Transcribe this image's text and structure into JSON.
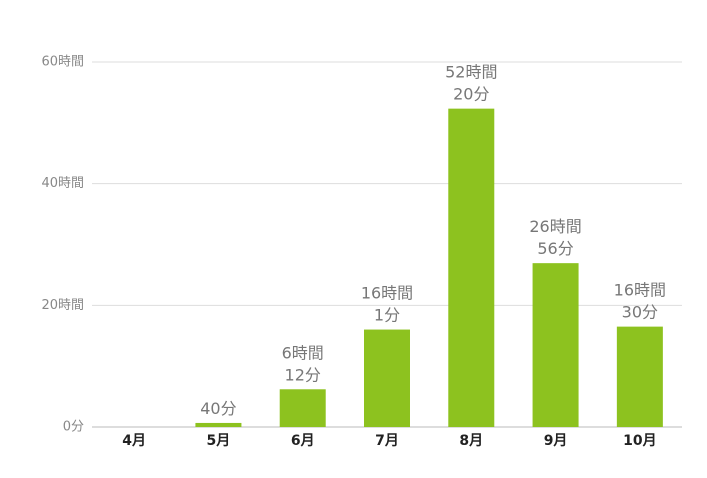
{
  "chart_data": {
    "type": "bar",
    "categories": [
      "4月",
      "5月",
      "6月",
      "7月",
      "8月",
      "9月",
      "10月"
    ],
    "values": [
      0,
      0.667,
      6.2,
      16.017,
      52.333,
      26.933,
      16.5
    ],
    "value_labels": [
      null,
      "40分",
      "6時間\n12分",
      "16時間\n1分",
      "52時間\n20分",
      "26時間\n56分",
      "16時間\n30分"
    ],
    "color": "#8dc21f",
    "ylim": [
      0,
      60
    ],
    "yticks": [
      {
        "value": 0,
        "label": "0分"
      },
      {
        "value": 20,
        "label": "20時間"
      },
      {
        "value": 40,
        "label": "40時間"
      },
      {
        "value": 60,
        "label": "60時間"
      }
    ],
    "grid": true
  }
}
